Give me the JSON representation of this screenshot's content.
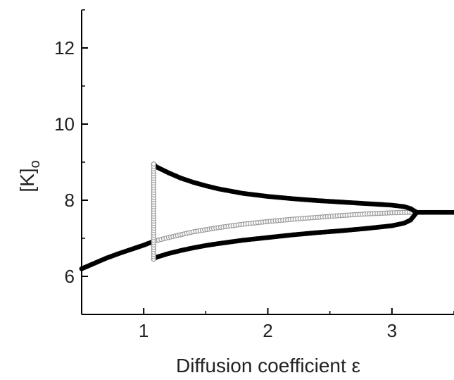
{
  "chart_data": {
    "type": "scatter",
    "title": "",
    "xlabel": "Diffusion coefficient ε",
    "ylabel": "[K]",
    "ylabel_sub": "o",
    "xlim": [
      0.5,
      3.5
    ],
    "ylim": [
      5,
      13
    ],
    "x_ticks": [
      1,
      2,
      3
    ],
    "y_ticks": [
      6,
      8,
      10,
      12
    ],
    "x_minor_ticks": [
      0.5,
      1.5,
      2.5,
      3.5
    ],
    "y_minor_ticks": [
      5,
      7,
      9,
      11,
      13
    ],
    "grid": false,
    "legend": "none",
    "series": [
      {
        "role": "stable-fixed-point",
        "marker": "filled",
        "color": "#000000",
        "x": [
          0.5,
          0.6,
          0.7,
          0.8,
          0.9,
          1.0,
          1.08
        ],
        "y": [
          6.2,
          6.34,
          6.48,
          6.6,
          6.71,
          6.82,
          6.92
        ]
      },
      {
        "role": "unstable-fixed-point",
        "marker": "open",
        "color": "#9a9a9a",
        "x": [
          1.08,
          1.2,
          1.4,
          1.6,
          1.8,
          2.0,
          2.2,
          2.4,
          2.6,
          2.8,
          3.0,
          3.1,
          3.2
        ],
        "y": [
          6.92,
          7.02,
          7.17,
          7.28,
          7.37,
          7.44,
          7.5,
          7.55,
          7.6,
          7.64,
          7.67,
          7.68,
          7.68
        ]
      },
      {
        "role": "periodic-maximum",
        "marker": "filled",
        "color": "#000000",
        "x": [
          1.08,
          1.1,
          1.2,
          1.3,
          1.4,
          1.5,
          1.6,
          1.8,
          2.0,
          2.2,
          2.4,
          2.6,
          2.8,
          3.0,
          3.1,
          3.15,
          3.2
        ],
        "y": [
          8.95,
          8.88,
          8.72,
          8.58,
          8.47,
          8.38,
          8.3,
          8.18,
          8.1,
          8.04,
          7.99,
          7.95,
          7.91,
          7.87,
          7.83,
          7.78,
          7.68
        ]
      },
      {
        "role": "periodic-minimum",
        "marker": "filled",
        "color": "#000000",
        "x": [
          1.08,
          1.1,
          1.2,
          1.3,
          1.4,
          1.5,
          1.6,
          1.8,
          2.0,
          2.2,
          2.4,
          2.6,
          2.8,
          3.0,
          3.1,
          3.15,
          3.2
        ],
        "y": [
          6.45,
          6.5,
          6.6,
          6.68,
          6.75,
          6.81,
          6.86,
          6.95,
          7.02,
          7.09,
          7.15,
          7.2,
          7.26,
          7.33,
          7.4,
          7.48,
          7.68
        ]
      },
      {
        "role": "stable-fixed-point",
        "marker": "filled",
        "color": "#000000",
        "x": [
          3.2,
          3.3,
          3.4,
          3.5
        ],
        "y": [
          7.68,
          7.68,
          7.68,
          7.68
        ]
      },
      {
        "role": "vertical-branch",
        "marker": "open",
        "color": "#9a9a9a",
        "x": [
          1.08,
          1.08
        ],
        "y": [
          6.45,
          8.95
        ]
      }
    ]
  }
}
